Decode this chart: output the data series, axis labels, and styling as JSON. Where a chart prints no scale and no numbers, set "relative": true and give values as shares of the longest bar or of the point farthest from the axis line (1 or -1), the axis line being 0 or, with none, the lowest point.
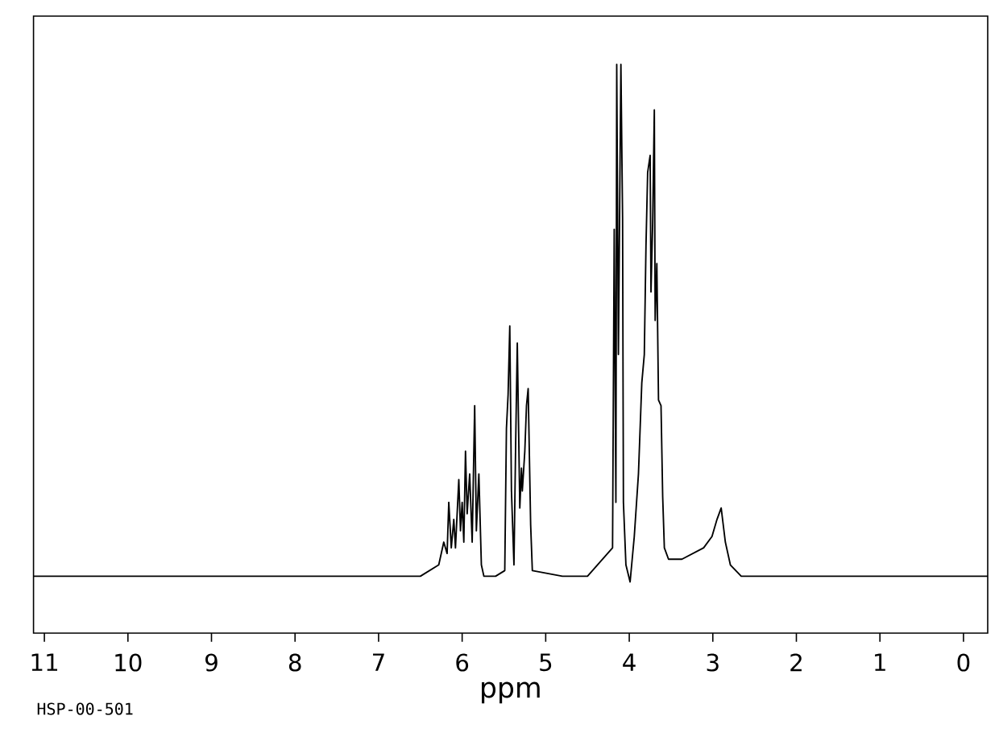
{
  "chart_data": {
    "type": "line",
    "relative": true,
    "xlabel": "ppm",
    "color": "#000000",
    "tick_labels": "x",
    "annotations": [
      "HSP-00-501"
    ],
    "xlim": [
      11.13,
      -0.29
    ],
    "xticks": [
      11,
      10,
      9,
      8,
      7,
      6,
      5,
      4,
      3,
      2,
      1,
      0
    ],
    "x": [
      11.13,
      10.5,
      10,
      9.5,
      9,
      8.5,
      8,
      7.5,
      7,
      6.5,
      6.28,
      6.22,
      6.18,
      6.16,
      6.13,
      6.1,
      6.08,
      6.04,
      6.02,
      6.0,
      5.98,
      5.96,
      5.94,
      5.91,
      5.88,
      5.85,
      5.83,
      5.8,
      5.77,
      5.74,
      5.6,
      5.49,
      5.47,
      5.45,
      5.43,
      5.41,
      5.38,
      5.36,
      5.34,
      5.31,
      5.29,
      5.28,
      5.25,
      5.23,
      5.21,
      5.18,
      5.16,
      4.8,
      4.5,
      4.2,
      4.18,
      4.16,
      4.15,
      4.13,
      4.1,
      4.08,
      4.07,
      4.04,
      3.99,
      3.94,
      3.89,
      3.85,
      3.82,
      3.8,
      3.78,
      3.75,
      3.74,
      3.72,
      3.7,
      3.69,
      3.67,
      3.65,
      3.62,
      3.6,
      3.58,
      3.53,
      3.37,
      3.11,
      3.01,
      2.95,
      2.9,
      2.85,
      2.79,
      2.66,
      2.2,
      1.5,
      1.0,
      0.5,
      0.0,
      -0.29
    ],
    "values": [
      0.1,
      0.1,
      0.1,
      0.1,
      0.1,
      0.1,
      0.1,
      0.1,
      0.1,
      0.1,
      0.12,
      0.16,
      0.14,
      0.23,
      0.15,
      0.2,
      0.15,
      0.27,
      0.18,
      0.23,
      0.16,
      0.32,
      0.21,
      0.28,
      0.16,
      0.4,
      0.18,
      0.28,
      0.12,
      0.1,
      0.1,
      0.11,
      0.36,
      0.42,
      0.54,
      0.25,
      0.12,
      0.33,
      0.51,
      0.22,
      0.29,
      0.25,
      0.32,
      0.4,
      0.43,
      0.19,
      0.11,
      0.1,
      0.1,
      0.15,
      0.71,
      0.23,
      1.0,
      0.49,
      1.0,
      0.73,
      0.23,
      0.12,
      0.09,
      0.17,
      0.28,
      0.44,
      0.49,
      0.68,
      0.81,
      0.84,
      0.6,
      0.72,
      0.92,
      0.55,
      0.65,
      0.41,
      0.4,
      0.24,
      0.15,
      0.13,
      0.13,
      0.15,
      0.17,
      0.2,
      0.22,
      0.16,
      0.12,
      0.1,
      0.1,
      0.1,
      0.1,
      0.1,
      0.1,
      0.1
    ]
  }
}
